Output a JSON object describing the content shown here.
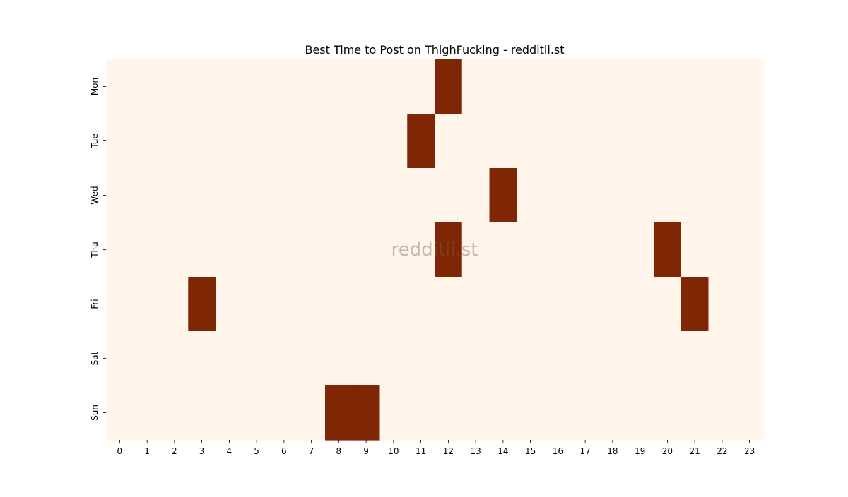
{
  "chart_data": {
    "type": "heatmap",
    "title": "Best Time to Post on ThighFucking - redditli.st",
    "watermark": "redditli.st",
    "x_categories": [
      "0",
      "1",
      "2",
      "3",
      "4",
      "5",
      "6",
      "7",
      "8",
      "9",
      "10",
      "11",
      "12",
      "13",
      "14",
      "15",
      "16",
      "17",
      "18",
      "19",
      "20",
      "21",
      "22",
      "23"
    ],
    "y_categories": [
      "Mon",
      "Tue",
      "Wed",
      "Thu",
      "Fri",
      "Sat",
      "Sun"
    ],
    "values": [
      [
        0,
        0,
        0,
        0,
        0,
        0,
        0,
        0,
        0,
        0,
        0,
        0,
        1,
        0,
        0,
        0,
        0,
        0,
        0,
        0,
        0,
        0,
        0,
        0
      ],
      [
        0,
        0,
        0,
        0,
        0,
        0,
        0,
        0,
        0,
        0,
        0,
        1,
        0,
        0,
        0,
        0,
        0,
        0,
        0,
        0,
        0,
        0,
        0,
        0
      ],
      [
        0,
        0,
        0,
        0,
        0,
        0,
        0,
        0,
        0,
        0,
        0,
        0,
        0,
        0,
        1,
        0,
        0,
        0,
        0,
        0,
        0,
        0,
        0,
        0
      ],
      [
        0,
        0,
        0,
        0,
        0,
        0,
        0,
        0,
        0,
        0,
        0,
        0,
        1,
        0,
        0,
        0,
        0,
        0,
        0,
        0,
        1,
        0,
        0,
        0
      ],
      [
        0,
        0,
        0,
        1,
        0,
        0,
        0,
        0,
        0,
        0,
        0,
        0,
        0,
        0,
        0,
        0,
        0,
        0,
        0,
        0,
        0,
        1,
        0,
        0
      ],
      [
        0,
        0,
        0,
        0,
        0,
        0,
        0,
        0,
        0,
        0,
        0,
        0,
        0,
        0,
        0,
        0,
        0,
        0,
        0,
        0,
        0,
        0,
        0,
        0
      ],
      [
        0,
        0,
        0,
        0,
        0,
        0,
        0,
        0,
        1,
        1,
        0,
        0,
        0,
        0,
        0,
        0,
        0,
        0,
        0,
        0,
        0,
        0,
        0,
        0
      ]
    ],
    "colors": {
      "low": "#fff5eb",
      "high": "#7f2704"
    },
    "xlabel": "",
    "ylabel": "",
    "grid": false,
    "legend": "none"
  }
}
